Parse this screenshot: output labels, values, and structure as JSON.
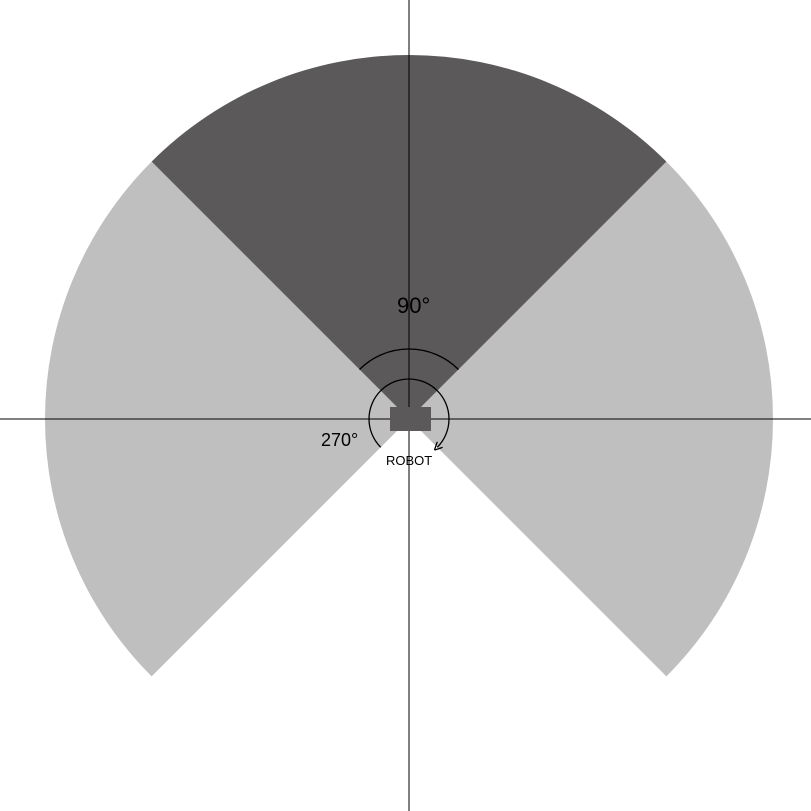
{
  "diagram": {
    "labels": {
      "front_angle": "90°",
      "rear_angle": "270°",
      "robot": "ROBOT"
    },
    "colors": {
      "background": "#ffffff",
      "front_sector": "#5b595a",
      "side_sectors": "#bfbfbf",
      "robot_body": "#5b595a",
      "axes": "#000000",
      "arcs": "#000000"
    },
    "sectors": [
      {
        "name": "front",
        "start_deg": 45,
        "end_deg": 135,
        "color_key": "front_sector"
      },
      {
        "name": "right",
        "start_deg": -45,
        "end_deg": 45,
        "color_key": "side_sectors"
      },
      {
        "name": "left",
        "start_deg": 135,
        "end_deg": 225,
        "color_key": "side_sectors"
      }
    ]
  }
}
